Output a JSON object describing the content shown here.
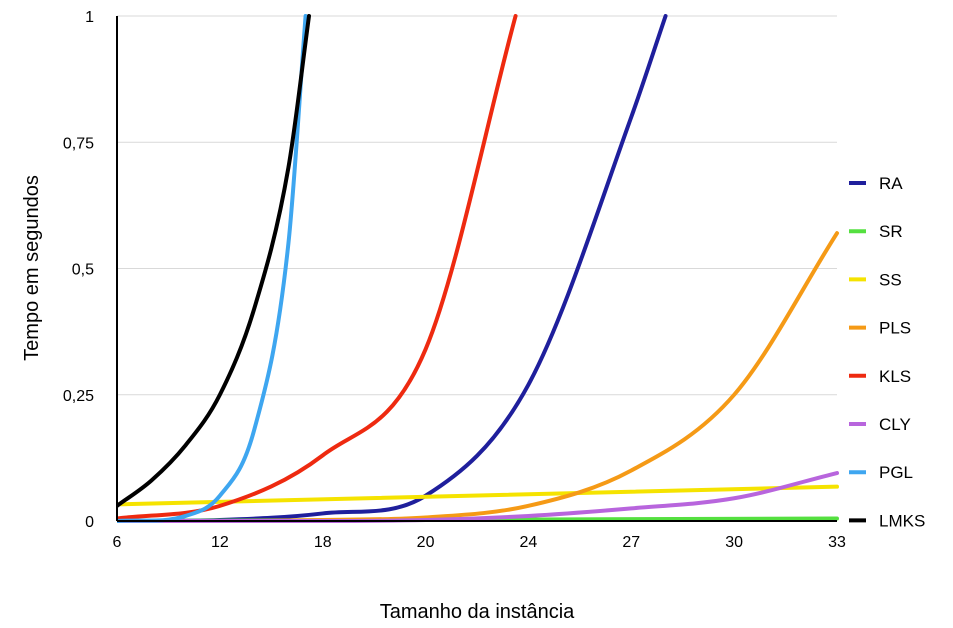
{
  "chart_data": {
    "type": "line",
    "title": "",
    "xlabel": "Tamanho da instância",
    "ylabel": "Tempo em segundos",
    "x_ticks": [
      "6",
      "12",
      "18",
      "20",
      "24",
      "27",
      "30",
      "33"
    ],
    "y_ticks": [
      "0",
      "0,25",
      "0,5",
      "0,75",
      "1"
    ],
    "ylim": [
      0,
      1
    ],
    "grid": "horizontal",
    "legend_position": "right",
    "series": [
      {
        "name": "RA",
        "color": "#1f1f9c",
        "x": [
          6,
          12,
          18,
          20,
          24,
          27,
          28
        ],
        "y": [
          0.0,
          0.002,
          0.015,
          0.05,
          0.27,
          0.8,
          1.0
        ]
      },
      {
        "name": "SR",
        "color": "#55e040",
        "x": [
          6,
          33
        ],
        "y": [
          0.0,
          0.005
        ]
      },
      {
        "name": "SS",
        "color": "#f5e300",
        "x": [
          6,
          33
        ],
        "y": [
          0.033,
          0.068
        ]
      },
      {
        "name": "PLS",
        "color": "#f59a16",
        "x": [
          6,
          12,
          18,
          20,
          24,
          27,
          30,
          33
        ],
        "y": [
          0.0,
          0.0,
          0.002,
          0.007,
          0.03,
          0.1,
          0.25,
          0.57
        ]
      },
      {
        "name": "KLS",
        "color": "#ee2a10",
        "x": [
          6,
          12,
          18,
          20,
          23.5
        ],
        "y": [
          0.005,
          0.03,
          0.13,
          0.34,
          1.0
        ]
      },
      {
        "name": "CLY",
        "color": "#b865dd",
        "x": [
          6,
          12,
          18,
          20,
          24,
          27,
          30,
          33
        ],
        "y": [
          0.0,
          0.0,
          0.0,
          0.002,
          0.01,
          0.025,
          0.045,
          0.095
        ]
      },
      {
        "name": "PGL",
        "color": "#3ea6f0",
        "x": [
          6,
          10,
          12,
          14,
          16,
          17
        ],
        "y": [
          0.0,
          0.01,
          0.05,
          0.18,
          0.55,
          1.0
        ]
      },
      {
        "name": "LMKS",
        "color": "#000000",
        "x": [
          6,
          8,
          10,
          12,
          14,
          16,
          17.2
        ],
        "y": [
          0.03,
          0.08,
          0.15,
          0.25,
          0.42,
          0.7,
          1.0
        ]
      }
    ]
  }
}
